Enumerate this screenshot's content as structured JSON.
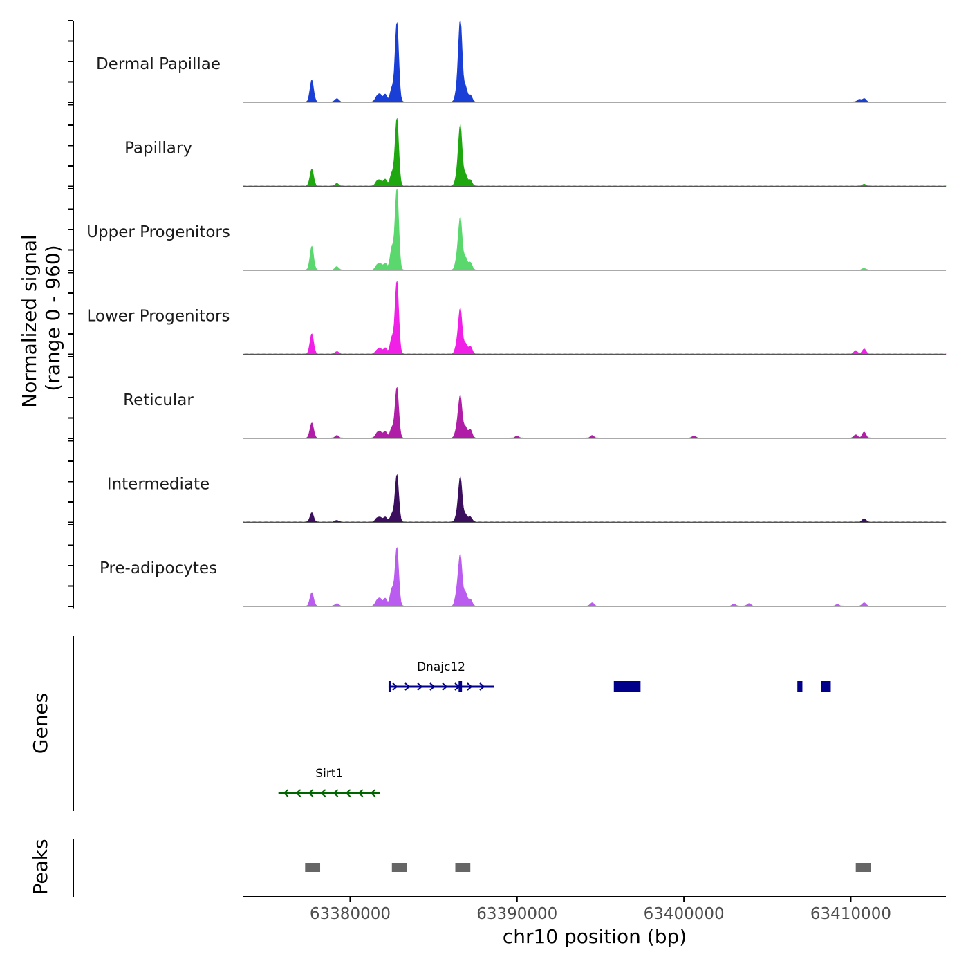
{
  "chart_data": {
    "type": "area",
    "title": "",
    "ylabel_line1": "Normalized signal",
    "ylabel_line2": "(range 0 - 960)",
    "ylim": [
      0,
      960
    ],
    "xlabel": "chr10 position (bp)",
    "xlim": [
      63373600,
      63415700
    ],
    "x_ticks": [
      63380000,
      63390000,
      63400000,
      63410000
    ],
    "x_tick_labels": [
      "63380000",
      "63390000",
      "63400000",
      "63410000"
    ],
    "tracks": [
      {
        "name": "Dermal Papillae",
        "color": "#1a3fd6",
        "peaks": [
          [
            63377700,
            260
          ],
          [
            63379200,
            40
          ],
          [
            63381600,
            60
          ],
          [
            63381800,
            80
          ],
          [
            63382100,
            90
          ],
          [
            63382500,
            160
          ],
          [
            63382800,
            940
          ],
          [
            63386400,
            120
          ],
          [
            63386600,
            960
          ],
          [
            63386900,
            180
          ],
          [
            63387200,
            80
          ],
          [
            63410500,
            30
          ],
          [
            63410800,
            40
          ]
        ]
      },
      {
        "name": "Papillary",
        "color": "#1ea70e",
        "peaks": [
          [
            63377700,
            200
          ],
          [
            63379200,
            30
          ],
          [
            63381600,
            50
          ],
          [
            63381800,
            60
          ],
          [
            63382100,
            80
          ],
          [
            63382500,
            150
          ],
          [
            63382800,
            800
          ],
          [
            63386400,
            110
          ],
          [
            63386600,
            700
          ],
          [
            63386900,
            140
          ],
          [
            63387200,
            70
          ],
          [
            63410800,
            20
          ]
        ]
      },
      {
        "name": "Upper Progenitors",
        "color": "#5ad86e",
        "peaks": [
          [
            63377700,
            280
          ],
          [
            63379200,
            40
          ],
          [
            63381600,
            50
          ],
          [
            63381800,
            70
          ],
          [
            63382100,
            80
          ],
          [
            63382500,
            260
          ],
          [
            63382800,
            960
          ],
          [
            63386400,
            120
          ],
          [
            63386600,
            600
          ],
          [
            63386900,
            150
          ],
          [
            63387200,
            90
          ],
          [
            63410800,
            20
          ]
        ]
      },
      {
        "name": "Lower Progenitors",
        "color": "#f020e6",
        "peaks": [
          [
            63377700,
            240
          ],
          [
            63379200,
            30
          ],
          [
            63381600,
            40
          ],
          [
            63381800,
            60
          ],
          [
            63382100,
            70
          ],
          [
            63382500,
            190
          ],
          [
            63382800,
            860
          ],
          [
            63386400,
            100
          ],
          [
            63386600,
            520
          ],
          [
            63386900,
            120
          ],
          [
            63387200,
            90
          ],
          [
            63410300,
            40
          ],
          [
            63410800,
            60
          ]
        ]
      },
      {
        "name": "Reticular",
        "color": "#b01ea8",
        "peaks": [
          [
            63377700,
            180
          ],
          [
            63379200,
            30
          ],
          [
            63381600,
            50
          ],
          [
            63381800,
            70
          ],
          [
            63382100,
            80
          ],
          [
            63382500,
            120
          ],
          [
            63382800,
            600
          ],
          [
            63386400,
            110
          ],
          [
            63386600,
            480
          ],
          [
            63386900,
            130
          ],
          [
            63387200,
            100
          ],
          [
            63390000,
            25
          ],
          [
            63394500,
            30
          ],
          [
            63400600,
            25
          ],
          [
            63410300,
            40
          ],
          [
            63410800,
            70
          ]
        ]
      },
      {
        "name": "Intermediate",
        "color": "#3b0f5e",
        "peaks": [
          [
            63377700,
            110
          ],
          [
            63379200,
            20
          ],
          [
            63381600,
            40
          ],
          [
            63381800,
            50
          ],
          [
            63382100,
            60
          ],
          [
            63382500,
            90
          ],
          [
            63382800,
            560
          ],
          [
            63386400,
            70
          ],
          [
            63386600,
            520
          ],
          [
            63386900,
            90
          ],
          [
            63387200,
            60
          ],
          [
            63410800,
            40
          ]
        ]
      },
      {
        "name": "Pre-adipocytes",
        "color": "#bb5cf0",
        "peaks": [
          [
            63377700,
            160
          ],
          [
            63379200,
            30
          ],
          [
            63381600,
            60
          ],
          [
            63381800,
            80
          ],
          [
            63382100,
            90
          ],
          [
            63382500,
            200
          ],
          [
            63382800,
            690
          ],
          [
            63386400,
            150
          ],
          [
            63386600,
            580
          ],
          [
            63386900,
            160
          ],
          [
            63387200,
            80
          ],
          [
            63394500,
            40
          ],
          [
            63403000,
            25
          ],
          [
            63403900,
            30
          ],
          [
            63409200,
            20
          ],
          [
            63410800,
            40
          ]
        ]
      }
    ],
    "genes_label": "Genes",
    "genes": [
      {
        "name": "Dnajc12",
        "strand": "+",
        "color": "#00008b",
        "start": 63382300,
        "end": 63388600,
        "exons": [
          [
            63382300,
            63382400
          ],
          [
            63386500,
            63386700
          ],
          [
            63395800,
            63397400
          ],
          [
            63406800,
            63407100
          ],
          [
            63408200,
            63408800
          ]
        ]
      },
      {
        "name": "Sirt1",
        "strand": "-",
        "color": "#006400",
        "start": 63375700,
        "end": 63381800,
        "exons": []
      }
    ],
    "peaks_label": "Peaks",
    "peak_regions": [
      [
        63377300,
        63378200
      ],
      [
        63382500,
        63383400
      ],
      [
        63386300,
        63387200
      ],
      [
        63410300,
        63411200
      ]
    ]
  }
}
